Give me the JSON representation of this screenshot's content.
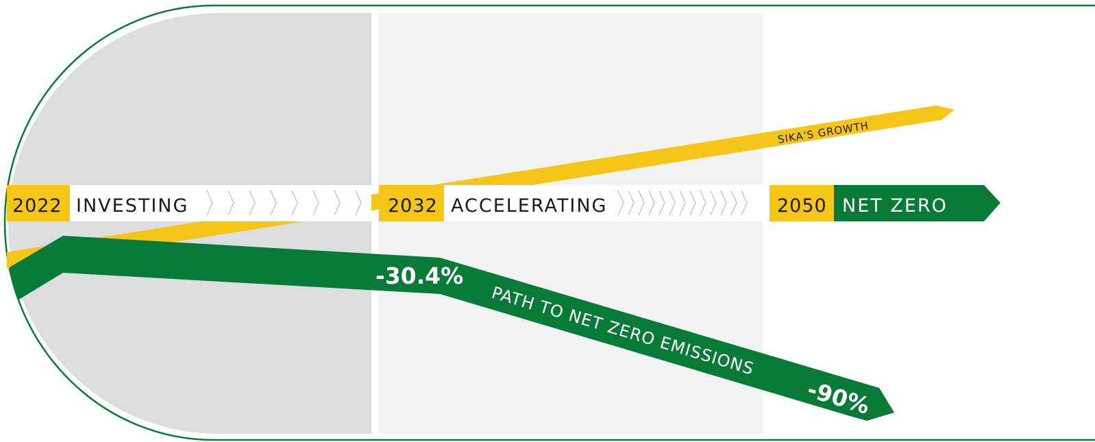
{
  "colors": {
    "green": "#077a37",
    "yellow": "#f5c518",
    "dark_band": "#dcdddf",
    "light_band": "#f1f2f3",
    "chevron": "#c7c7c7",
    "text": "#1a1a1a"
  },
  "stages": [
    {
      "year": "2022",
      "label": "INVESTING"
    },
    {
      "year": "2032",
      "label": "ACCELERATING"
    },
    {
      "year": "2050",
      "label": "NET ZERO"
    }
  ],
  "growth": {
    "label": "SIKA'S GROWTH"
  },
  "emissions": {
    "label": "PATH TO NET ZERO EMISSIONS",
    "milestone_2032": "-30.4%",
    "milestone_2050": "-90%"
  }
}
